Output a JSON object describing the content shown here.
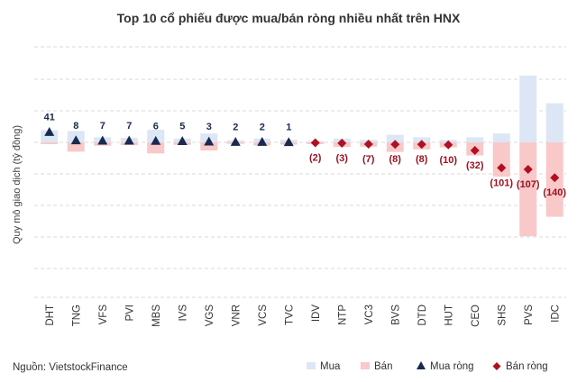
{
  "chart_data": {
    "type": "bar",
    "title": "Top 10 cổ phiếu được mua/bán ròng nhiều nhất trên HNX",
    "ylabel": "Quy mô giao dịch (tỷ đồng)",
    "source": "Nguồn: VietstockFinance",
    "ylim": [
      -350,
      250
    ],
    "grid": true,
    "legend_position": "bottom-right",
    "categories": [
      "DHT",
      "TNG",
      "VFS",
      "PVI",
      "MBS",
      "IVS",
      "VGS",
      "VNR",
      "VCS",
      "TVC",
      "IDV",
      "NTP",
      "VC3",
      "BVS",
      "DTD",
      "HUT",
      "CEO",
      "SHS",
      "PVS",
      "IDC"
    ],
    "series": [
      {
        "name": "Mua",
        "color": "#dce6f5",
        "marker": "bar",
        "values": [
          48,
          45,
          20,
          18,
          50,
          15,
          35,
          8,
          15,
          10,
          5,
          15,
          10,
          30,
          20,
          10,
          20,
          35,
          265,
          155
        ]
      },
      {
        "name": "Bán",
        "color": "#f9c8c8",
        "marker": "bar",
        "values": [
          -7,
          -37,
          -13,
          -11,
          -44,
          -10,
          -32,
          -6,
          -13,
          -9,
          -7,
          -18,
          -17,
          -38,
          -28,
          -20,
          -52,
          -136,
          -372,
          -295
        ]
      },
      {
        "name": "Mua ròng",
        "color": "#1a2a4f",
        "marker": "triangle",
        "values": [
          41,
          8,
          7,
          7,
          6,
          5,
          3,
          2,
          2,
          1,
          null,
          null,
          null,
          null,
          null,
          null,
          null,
          null,
          null,
          null
        ],
        "labels": [
          "41",
          "8",
          "7",
          "7",
          "6",
          "5",
          "3",
          "2",
          "2",
          "1",
          "",
          "",
          "",
          "",
          "",
          "",
          "",
          "",
          "",
          ""
        ]
      },
      {
        "name": "Bán ròng",
        "color": "#b01020",
        "marker": "diamond",
        "values": [
          null,
          null,
          null,
          null,
          null,
          null,
          null,
          null,
          null,
          null,
          -2,
          -3,
          -7,
          -8,
          -8,
          -10,
          -32,
          -101,
          -107,
          -140
        ],
        "labels": [
          "",
          "",
          "",
          "",
          "",
          "",
          "",
          "",
          "",
          "",
          "(2)",
          "(3)",
          "(7)",
          "(8)",
          "(8)",
          "(10)",
          "(32)",
          "(101)",
          "(107)",
          "(140)"
        ]
      }
    ]
  }
}
